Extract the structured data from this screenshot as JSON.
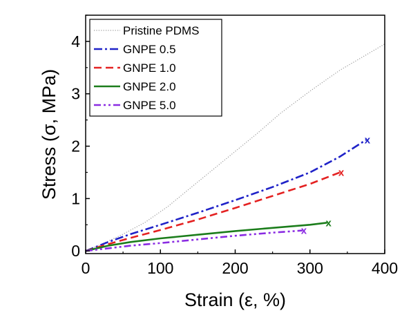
{
  "chart_data": {
    "type": "line",
    "title": "",
    "xlabel": "Strain (ε, %)",
    "ylabel": "Stress (σ, MPa)",
    "xlim": [
      0,
      400
    ],
    "ylim": [
      -0.05,
      4.5
    ],
    "xticks": [
      0,
      100,
      200,
      300,
      400
    ],
    "yticks": [
      0,
      1,
      2,
      3,
      4
    ],
    "xtick_labels": [
      "0",
      "100",
      "200",
      "300",
      "400"
    ],
    "ytick_labels": [
      "0",
      "1",
      "2",
      "3",
      "4"
    ],
    "grid": false,
    "legend_position": "top-left",
    "series": [
      {
        "name": "Pristine PDMS",
        "color": "#999999",
        "line_style": "dotted",
        "end_marker": "",
        "points": [
          [
            0,
            0
          ],
          [
            20,
            0.12
          ],
          [
            50,
            0.32
          ],
          [
            80,
            0.55
          ],
          [
            110,
            0.85
          ],
          [
            140,
            1.2
          ],
          [
            170,
            1.55
          ],
          [
            200,
            1.9
          ],
          [
            230,
            2.25
          ],
          [
            260,
            2.62
          ],
          [
            300,
            3.05
          ],
          [
            340,
            3.45
          ],
          [
            370,
            3.7
          ],
          [
            400,
            3.95
          ]
        ]
      },
      {
        "name": "GNPE 0.5",
        "color": "#1f22c8",
        "line_style": "dash-dot",
        "end_marker": "x",
        "points": [
          [
            0,
            0
          ],
          [
            30,
            0.17
          ],
          [
            60,
            0.32
          ],
          [
            100,
            0.5
          ],
          [
            150,
            0.73
          ],
          [
            200,
            0.97
          ],
          [
            250,
            1.22
          ],
          [
            300,
            1.5
          ],
          [
            340,
            1.8
          ],
          [
            375,
            2.12
          ]
        ]
      },
      {
        "name": "GNPE 1.0",
        "color": "#e42121",
        "line_style": "dashed",
        "end_marker": "x",
        "points": [
          [
            0,
            0
          ],
          [
            30,
            0.13
          ],
          [
            60,
            0.25
          ],
          [
            100,
            0.4
          ],
          [
            150,
            0.6
          ],
          [
            200,
            0.82
          ],
          [
            250,
            1.05
          ],
          [
            300,
            1.28
          ],
          [
            340,
            1.5
          ]
        ]
      },
      {
        "name": "GNPE 2.0",
        "color": "#1b7d1b",
        "line_style": "solid",
        "end_marker": "x",
        "points": [
          [
            0,
            0
          ],
          [
            30,
            0.1
          ],
          [
            60,
            0.17
          ],
          [
            100,
            0.24
          ],
          [
            150,
            0.31
          ],
          [
            200,
            0.38
          ],
          [
            250,
            0.44
          ],
          [
            300,
            0.5
          ],
          [
            323,
            0.54
          ]
        ]
      },
      {
        "name": "GNPE 5.0",
        "color": "#8a2be2",
        "line_style": "dash-dot-dot",
        "end_marker": "x",
        "points": [
          [
            0,
            0
          ],
          [
            30,
            0.05
          ],
          [
            60,
            0.1
          ],
          [
            100,
            0.15
          ],
          [
            150,
            0.22
          ],
          [
            200,
            0.29
          ],
          [
            250,
            0.35
          ],
          [
            290,
            0.39
          ]
        ]
      }
    ]
  }
}
